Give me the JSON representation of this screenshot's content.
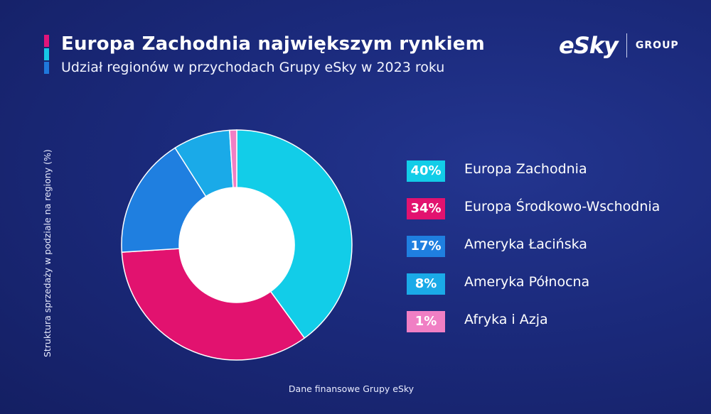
{
  "header": {
    "title": "Europa Zachodnia największym rynkiem",
    "subtitle": "Udział regionów w przychodach Grupy eSky w 2023 roku",
    "accent_colors": [
      "#e0147a",
      "#16c8e6",
      "#1f78dc"
    ]
  },
  "logo": {
    "mark": "eSky",
    "group": "GROUP"
  },
  "chart_data": {
    "type": "pie",
    "variant": "donut",
    "ylabel": "Struktura sprzedaży w podziale na regiony (%)",
    "unit": "%",
    "slices": [
      {
        "label": "Europa Zachodnia",
        "value": 40,
        "display": "40%",
        "color": "#12cde8"
      },
      {
        "label": "Europa Środkowo-Wschodnia",
        "value": 34,
        "display": "34%",
        "color": "#e2126f"
      },
      {
        "label": "Ameryka Łacińska",
        "value": 17,
        "display": "17%",
        "color": "#1f7fe0"
      },
      {
        "label": "Ameryka Północna",
        "value": 8,
        "display": "8%",
        "color": "#1aaae8"
      },
      {
        "label": "Afryka i Azja",
        "value": 1,
        "display": "1%",
        "color": "#f07fc4"
      }
    ],
    "legend_position": "right"
  },
  "footer": {
    "source": "Dane finansowe Grupy eSky"
  }
}
